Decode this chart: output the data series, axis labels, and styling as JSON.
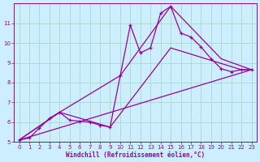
{
  "background_color": "#cceeff",
  "line_color": "#990099",
  "grid_color": "#aaddcc",
  "xlabel": "Windchill (Refroidissement éolien,°C)",
  "xlabel_color": "#990099",
  "tick_color": "#990099",
  "xlim": [
    -0.5,
    23.5
  ],
  "ylim": [
    5,
    12
  ],
  "yticks": [
    5,
    6,
    7,
    8,
    9,
    10,
    11
  ],
  "xticks": [
    0,
    1,
    2,
    3,
    4,
    5,
    6,
    7,
    8,
    9,
    10,
    11,
    12,
    13,
    14,
    15,
    16,
    17,
    18,
    19,
    20,
    21,
    22,
    23
  ],
  "marked_line": {
    "x": [
      0,
      1,
      2,
      3,
      4,
      5,
      6,
      7,
      8,
      9,
      10,
      11,
      12,
      13,
      14,
      15,
      16,
      17,
      18,
      19,
      20,
      21,
      22,
      23
    ],
    "y": [
      5.1,
      5.2,
      5.7,
      6.2,
      6.5,
      6.1,
      6.05,
      6.0,
      5.85,
      5.75,
      8.35,
      10.9,
      9.5,
      9.75,
      11.5,
      11.85,
      10.5,
      10.3,
      9.8,
      9.2,
      8.7,
      8.55,
      8.65,
      8.65
    ]
  },
  "line_upper": {
    "x": [
      0,
      4,
      10,
      15,
      20,
      23
    ],
    "y": [
      5.1,
      6.5,
      8.35,
      11.85,
      9.2,
      8.65
    ]
  },
  "line_mid": {
    "x": [
      0,
      4,
      10,
      15,
      20,
      23
    ],
    "y": [
      5.1,
      6.5,
      8.35,
      11.85,
      9.2,
      8.65
    ]
  },
  "line_lower_straight": {
    "x": [
      0,
      23
    ],
    "y": [
      5.1,
      8.65
    ]
  },
  "line_mid2": {
    "x": [
      0,
      4,
      9,
      15,
      22,
      23
    ],
    "y": [
      5.1,
      6.5,
      5.75,
      9.75,
      8.65,
      8.65
    ]
  }
}
